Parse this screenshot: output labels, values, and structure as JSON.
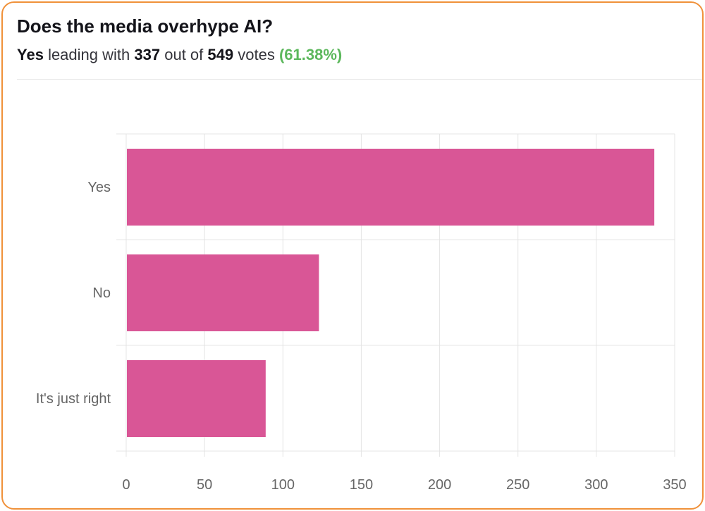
{
  "poll": {
    "question": "Does the media overhype AI?",
    "leader": "Yes",
    "leading_text": "leading with",
    "leader_votes": "337",
    "out_of_text": "out of",
    "total_votes": "549",
    "votes_text": "votes",
    "leader_percent": "(61.38%)"
  },
  "colors": {
    "bar": "#d95696",
    "border": "#f0913a",
    "percent": "#5cb85c",
    "grid": "#e4e4e4"
  },
  "chart_data": {
    "type": "bar",
    "orientation": "horizontal",
    "categories": [
      "Yes",
      "No",
      "It's just right"
    ],
    "values": [
      337,
      123,
      89
    ],
    "xlim": [
      0,
      350
    ],
    "xticks": [
      0,
      50,
      100,
      150,
      200,
      250,
      300,
      350
    ],
    "grid": true
  }
}
